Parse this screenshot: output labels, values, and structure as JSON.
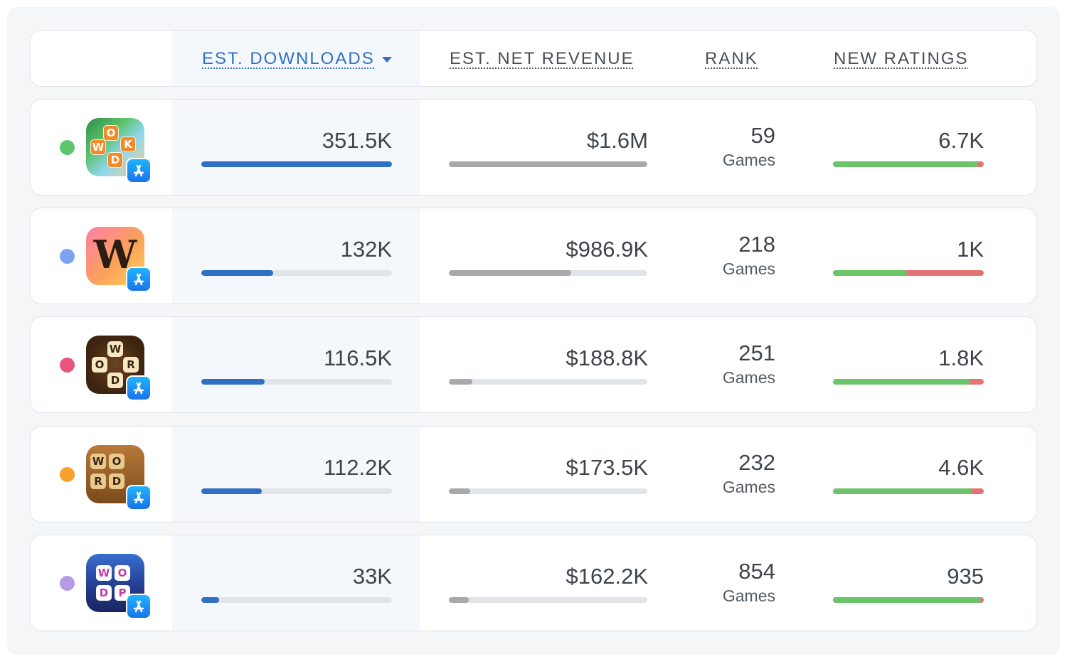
{
  "header": {
    "columns": [
      {
        "key": "downloads",
        "label": "EST. DOWNLOADS",
        "active": true,
        "sort": "desc"
      },
      {
        "key": "revenue",
        "label": "EST. NET REVENUE"
      },
      {
        "key": "rank",
        "label": "RANK"
      },
      {
        "key": "ratings",
        "label": "NEW RATINGS"
      }
    ]
  },
  "colors": {
    "accent": "#2f6fc4",
    "bar_track": "#e1e4e8",
    "revenue_fill": "#a7a9ab",
    "ratings_positive": "#6cc46a",
    "ratings_negative": "#e57373"
  },
  "rows": [
    {
      "dot_color": "#5cc66f",
      "icon": "word-connect-icon",
      "store": "app-store-icon",
      "downloads": "351.5K",
      "downloads_level": 1.0,
      "revenue": "$1.6M",
      "revenue_level": 1.0,
      "rank": "59",
      "rank_category": "Games",
      "ratings": "6.7K",
      "ratings_positive_share": 0.96
    },
    {
      "dot_color": "#7ba3f0",
      "icon": "words-with-friends-icon",
      "store": "app-store-icon",
      "downloads": "132K",
      "downloads_level": 0.376,
      "revenue": "$986.9K",
      "revenue_level": 0.615,
      "rank": "218",
      "rank_category": "Games",
      "ratings": "1K",
      "ratings_positive_share": 0.49
    },
    {
      "dot_color": "#e9557f",
      "icon": "wordscapes-icon",
      "store": "app-store-icon",
      "downloads": "116.5K",
      "downloads_level": 0.332,
      "revenue": "$188.8K",
      "revenue_level": 0.118,
      "rank": "251",
      "rank_category": "Games",
      "ratings": "1.8K",
      "ratings_positive_share": 0.91
    },
    {
      "dot_color": "#f6a02e",
      "icon": "word-connect-2020-icon",
      "store": "app-store-icon",
      "downloads": "112.2K",
      "downloads_level": 0.319,
      "revenue": "$173.5K",
      "revenue_level": 0.108,
      "rank": "232",
      "rank_category": "Games",
      "ratings": "4.6K",
      "ratings_positive_share": 0.92
    },
    {
      "dot_color": "#b69ae6",
      "icon": "word-puzzle-icon",
      "store": "app-store-icon",
      "downloads": "33K",
      "downloads_level": 0.094,
      "revenue": "$162.2K",
      "revenue_level": 0.101,
      "rank": "854",
      "rank_category": "Games",
      "ratings": "935",
      "ratings_positive_share": 0.98
    }
  ]
}
